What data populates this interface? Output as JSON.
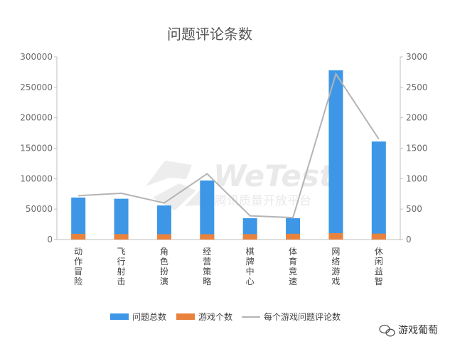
{
  "chart_data": {
    "type": "bar",
    "title": "问题评论条数",
    "categories": [
      "动作冒险",
      "飞行射击",
      "角色扮演",
      "经营策略",
      "棋牌中心",
      "体育竞速",
      "网络游戏",
      "休闲益智"
    ],
    "series": [
      {
        "name": "问题总数",
        "type": "bar",
        "axis": "left",
        "color": "#3d97e6",
        "values": [
          69000,
          67000,
          56000,
          97000,
          35000,
          35000,
          278000,
          161000
        ]
      },
      {
        "name": "游戏个数",
        "type": "bar",
        "axis": "left",
        "color": "#e8823c",
        "values": [
          9500,
          9000,
          8800,
          8800,
          9000,
          9500,
          10500,
          9800
        ]
      },
      {
        "name": "每个游戏问题评论数",
        "type": "line",
        "axis": "right",
        "color": "#b4b4b4",
        "values": [
          720,
          760,
          600,
          1080,
          390,
          360,
          2720,
          1650
        ]
      }
    ],
    "y_left": {
      "min": 0,
      "max": 300000,
      "ticks": [
        "0",
        "50000",
        "100000",
        "150000",
        "200000",
        "250000",
        "300000"
      ]
    },
    "y_right": {
      "min": 0,
      "max": 3000,
      "ticks": [
        "0",
        "500",
        "1000",
        "1500",
        "2000",
        "2500",
        "3000"
      ]
    },
    "grid": false,
    "legend_position": "bottom"
  },
  "watermark": {
    "main": "WeTest",
    "sub": "腾讯质量开放平台"
  },
  "brand": {
    "name": "游戏葡萄",
    "icon": "wechat-icon"
  }
}
